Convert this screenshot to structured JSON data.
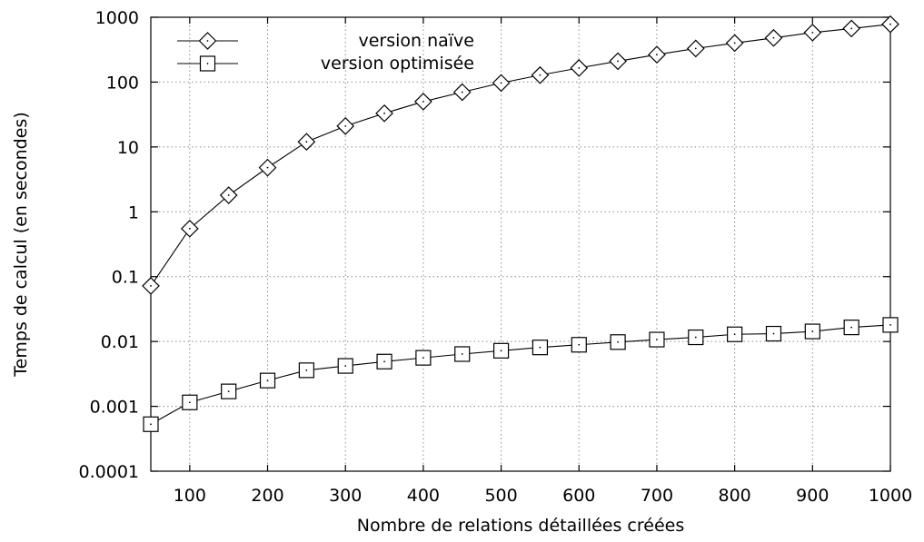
{
  "chart_data": {
    "type": "line",
    "xlabel": "Nombre de relations détaillées créées",
    "ylabel": "Temps de calcul (en secondes)",
    "xlim": [
      50,
      1000
    ],
    "ylim": [
      0.0001,
      1000
    ],
    "yscale": "log",
    "grid": true,
    "legend_position": "top-left",
    "x_ticks": [
      100,
      200,
      300,
      400,
      500,
      600,
      700,
      800,
      900,
      1000
    ],
    "x_tick_labels": [
      "100",
      "200",
      "300",
      "400",
      "500",
      "600",
      "700",
      "800",
      "900",
      "1000"
    ],
    "y_ticks": [
      0.0001,
      0.001,
      0.01,
      0.1,
      1,
      10,
      100,
      1000
    ],
    "y_tick_labels": [
      "0.0001",
      "0.001",
      "0.01",
      "0.1",
      "1",
      "10",
      "100",
      "1000"
    ],
    "x": [
      50,
      100,
      150,
      200,
      250,
      300,
      350,
      400,
      450,
      500,
      550,
      600,
      650,
      700,
      750,
      800,
      850,
      900,
      950,
      1000
    ],
    "series": [
      {
        "name": "version naïve",
        "marker": "diamond",
        "values": [
          0.072,
          0.55,
          1.8,
          4.8,
          12,
          21,
          33,
          50,
          70,
          97,
          128,
          165,
          210,
          265,
          330,
          400,
          480,
          580,
          670,
          780
        ]
      },
      {
        "name": "version optimisée",
        "marker": "square",
        "values": [
          0.00053,
          0.00115,
          0.0017,
          0.0025,
          0.0036,
          0.0042,
          0.0049,
          0.0056,
          0.0064,
          0.0072,
          0.0081,
          0.0089,
          0.0098,
          0.0107,
          0.0116,
          0.0129,
          0.0132,
          0.0143,
          0.0165,
          0.018
        ]
      }
    ]
  }
}
